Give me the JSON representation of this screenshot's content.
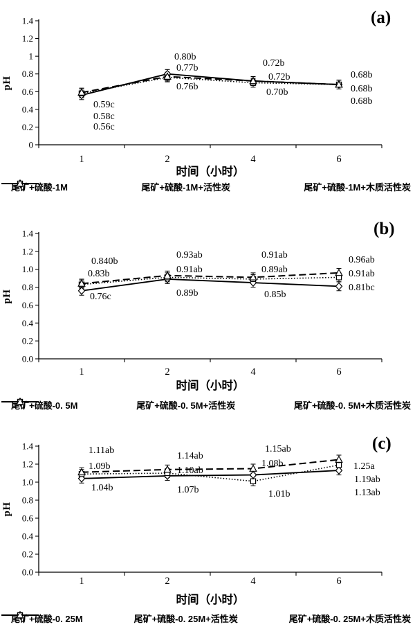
{
  "figure_title": "",
  "colors": {
    "foreground": "#000000",
    "background": "#ffffff",
    "marker_fill": "#ffffff"
  },
  "chart_data": [
    {
      "type": "line",
      "panel_label": "(a)",
      "ylabel": "pH",
      "xlabel": "时间（小时）",
      "x_categories": [
        "1",
        "2",
        "4",
        "6"
      ],
      "y_tick_labels": [
        "0",
        "0.2",
        "0.4",
        "0.6",
        "0.8",
        "1",
        "1.2",
        "1.4"
      ],
      "ylim": [
        0,
        1.4
      ],
      "grid": false,
      "legend_position": "bottom",
      "error_bar": 0.05,
      "series": [
        {
          "name": "尾矿+硫酸-1M",
          "line_style": "solid",
          "marker": "diamond",
          "values": [
            0.56,
            0.8,
            0.72,
            0.68
          ],
          "sig_labels": [
            "0.56c",
            "0.80b",
            "0.72b",
            "0.68b"
          ],
          "label_positions": [
            {
              "x": 135,
              "y": 187
            },
            {
              "x": 252,
              "y": 86
            },
            {
              "x": 388,
              "y": 115
            },
            {
              "x": 507,
              "y": 132
            }
          ]
        },
        {
          "name": "尾矿+硫酸-1M+活性炭",
          "line_style": "dotted",
          "marker": "square",
          "values": [
            0.58,
            0.76,
            0.7,
            0.68
          ],
          "sig_labels": [
            "0.58c",
            "0.76b",
            "0.70b",
            "0.68b"
          ],
          "label_positions": [
            {
              "x": 135,
              "y": 172
            },
            {
              "x": 255,
              "y": 129
            },
            {
              "x": 385,
              "y": 137
            },
            {
              "x": 507,
              "y": 150
            }
          ]
        },
        {
          "name": "尾矿+硫酸-1M+木质活性炭",
          "line_style": "dashed",
          "marker": "triangle",
          "values": [
            0.59,
            0.77,
            0.72,
            0.68
          ],
          "sig_labels": [
            "0.59c",
            "0.77b",
            "0.72b",
            "0.68b"
          ],
          "label_positions": [
            {
              "x": 135,
              "y": 155
            },
            {
              "x": 255,
              "y": 102
            },
            {
              "x": 380,
              "y": 95
            },
            {
              "x": 507,
              "y": 112
            }
          ]
        }
      ]
    },
    {
      "type": "line",
      "panel_label": "(b)",
      "ylabel": "pH",
      "xlabel": "时间（小时）",
      "x_categories": [
        "1",
        "2",
        "4",
        "6"
      ],
      "y_tick_labels": [
        "0.0",
        "0.2",
        "0.4",
        "0.6",
        "0.8",
        "1.0",
        "1.2",
        "1.4"
      ],
      "ylim": [
        0,
        1.4
      ],
      "grid": false,
      "legend_position": "bottom",
      "error_bar": 0.05,
      "series": [
        {
          "name": "尾矿+硫酸-0. 5M",
          "line_style": "solid",
          "marker": "diamond",
          "values": [
            0.76,
            0.89,
            0.85,
            0.81
          ],
          "sig_labels": [
            "0.76c",
            "0.89b",
            "0.85b",
            "0.81bc"
          ],
          "label_positions": [
            {
              "x": 130,
              "y": 130
            },
            {
              "x": 255,
              "y": 125
            },
            {
              "x": 382,
              "y": 127
            },
            {
              "x": 504,
              "y": 117
            }
          ]
        },
        {
          "name": "尾矿+硫酸-0. 5M+活性炭",
          "line_style": "dotted",
          "marker": "square",
          "values": [
            0.83,
            0.91,
            0.89,
            0.91
          ],
          "sig_labels": [
            "0.83b",
            "0.91ab",
            "0.89ab",
            "0.91ab"
          ],
          "label_positions": [
            {
              "x": 127,
              "y": 97
            },
            {
              "x": 255,
              "y": 91
            },
            {
              "x": 378,
              "y": 91
            },
            {
              "x": 504,
              "y": 97
            }
          ]
        },
        {
          "name": "尾矿+硫酸-0. 5M+木质活性炭",
          "line_style": "dashed",
          "marker": "triangle",
          "values": [
            0.84,
            0.93,
            0.91,
            0.96
          ],
          "sig_labels": [
            "0.840b",
            "0.93ab",
            "0.91ab",
            "0.96ab"
          ],
          "label_positions": [
            {
              "x": 132,
              "y": 79
            },
            {
              "x": 255,
              "y": 70
            },
            {
              "x": 378,
              "y": 70
            },
            {
              "x": 504,
              "y": 77
            }
          ]
        }
      ]
    },
    {
      "type": "line",
      "panel_label": "(c)",
      "ylabel": "pH",
      "xlabel": "时间（小时）",
      "x_categories": [
        "1",
        "2",
        "4",
        "6"
      ],
      "y_tick_labels": [
        "0.0",
        "0.2",
        "0.4",
        "0.6",
        "0.8",
        "1.0",
        "1.2",
        "1.4"
      ],
      "ylim": [
        0,
        1.4
      ],
      "grid": false,
      "legend_position": "bottom",
      "error_bar": 0.05,
      "series": [
        {
          "name": "尾矿+硫酸-0. 25M",
          "line_style": "solid",
          "marker": "diamond",
          "values": [
            1.04,
            1.07,
            1.08,
            1.13
          ],
          "sig_labels": [
            "1.04b",
            "1.07b",
            "1.08b",
            "1.13ab"
          ],
          "label_positions": [
            {
              "x": 132,
              "y": 98
            },
            {
              "x": 256,
              "y": 101
            },
            {
              "x": 378,
              "y": 63
            },
            {
              "x": 512,
              "y": 105
            }
          ]
        },
        {
          "name": "尾矿+硫酸-0. 25M+活性炭",
          "line_style": "dotted",
          "marker": "square",
          "values": [
            1.09,
            1.1,
            1.01,
            1.19
          ],
          "sig_labels": [
            "1.09b",
            "1.10ab",
            "1.01b",
            "1.19ab"
          ],
          "label_positions": [
            {
              "x": 128,
              "y": 67
            },
            {
              "x": 256,
              "y": 73
            },
            {
              "x": 388,
              "y": 107
            },
            {
              "x": 512,
              "y": 86
            }
          ]
        },
        {
          "name": "尾矿+硫酸-0. 25M+木质活性炭",
          "line_style": "dashed",
          "marker": "triangle",
          "values": [
            1.11,
            1.14,
            1.15,
            1.25
          ],
          "sig_labels": [
            "1.11ab",
            "1.14ab",
            "1.15ab",
            "1.25a"
          ],
          "label_positions": [
            {
              "x": 128,
              "y": 44
            },
            {
              "x": 256,
              "y": 52
            },
            {
              "x": 383,
              "y": 42
            },
            {
              "x": 511,
              "y": 67
            }
          ]
        }
      ]
    }
  ]
}
